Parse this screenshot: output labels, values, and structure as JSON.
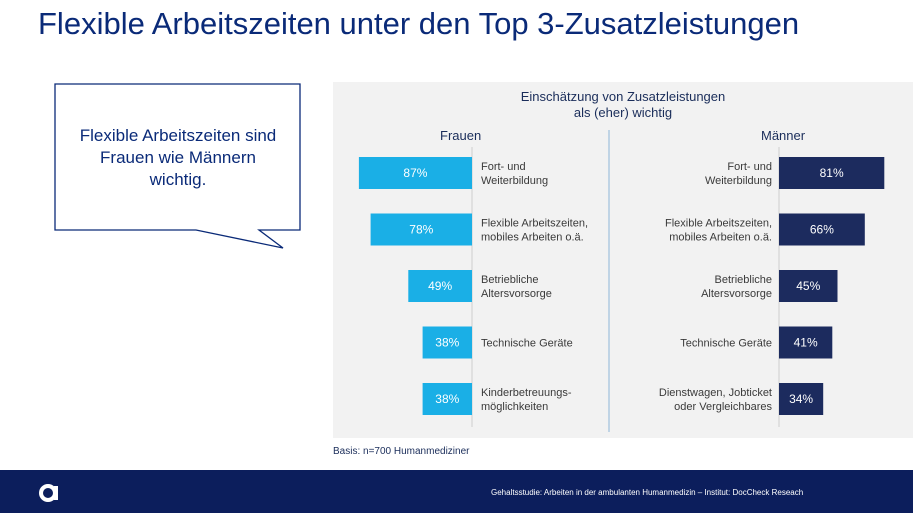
{
  "title": "Flexible Arbeitszeiten unter den Top 3-Zusatzleistungen",
  "callout": {
    "lines": [
      "Flexible Arbeitszeiten sind",
      "Frauen wie Männern",
      "wichtig."
    ]
  },
  "chart_data": {
    "type": "bar",
    "title_lines": [
      "Einschätzung von Zusatzleistungen",
      "als (eher) wichtig"
    ],
    "xlim": [
      0,
      100
    ],
    "groups": [
      {
        "name": "Frauen",
        "color": "#1aafe6",
        "categories": [
          [
            "Fort- und",
            "Weiterbildung"
          ],
          [
            "Flexible Arbeitszeiten,",
            "mobiles Arbeiten o.ä."
          ],
          [
            "Betriebliche",
            "Altersvorsorge"
          ],
          [
            "Technische Geräte"
          ],
          [
            "Kinderbetreuungs-",
            "möglichkeiten"
          ]
        ],
        "values": [
          87,
          78,
          49,
          38,
          38
        ],
        "labels": [
          "87%",
          "78%",
          "49%",
          "38%",
          "38%"
        ]
      },
      {
        "name": "Männer",
        "color": "#1c2b5e",
        "categories": [
          [
            "Fort- und",
            "Weiterbildung"
          ],
          [
            "Flexible Arbeitszeiten,",
            "mobiles Arbeiten o.ä."
          ],
          [
            "Betriebliche",
            "Altersvorsorge"
          ],
          [
            "Technische Geräte"
          ],
          [
            "Dienstwagen, Jobticket",
            "oder Vergleichbares"
          ]
        ],
        "values": [
          81,
          66,
          45,
          41,
          34
        ],
        "labels": [
          "81%",
          "66%",
          "45%",
          "41%",
          "34%"
        ]
      }
    ]
  },
  "basis": "Basis: n=700 Humanmediziner",
  "footer": {
    "text": "Gehaltsstudie: Arbeiten in der ambulanten Humanmedizin – Institut: DocCheck Reseach"
  },
  "colors": {
    "title": "#0a2a78",
    "footer_bg": "#0c1e5c",
    "frauen_bar": "#1aafe6",
    "maenner_bar": "#1c2b5e",
    "panel_bg": "#f2f2f2"
  }
}
